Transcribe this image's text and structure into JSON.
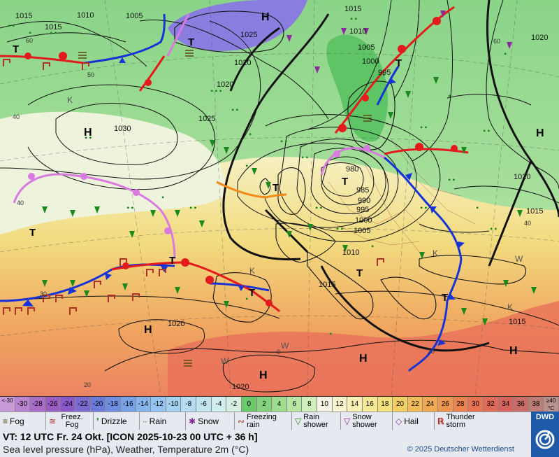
{
  "map": {
    "pressure_labels": [
      {
        "text": "1015"
      },
      {
        "text": "1010"
      },
      {
        "text": "1005"
      },
      {
        "text": "1015"
      },
      {
        "text": "1025"
      },
      {
        "text": "1020"
      },
      {
        "text": "1020"
      },
      {
        "text": "1030"
      },
      {
        "text": "1025"
      },
      {
        "text": "1010"
      },
      {
        "text": "1005"
      },
      {
        "text": "1000"
      },
      {
        "text": "995"
      },
      {
        "text": "1015"
      },
      {
        "text": "1020"
      },
      {
        "text": "1020"
      },
      {
        "text": "1015"
      },
      {
        "text": "980"
      },
      {
        "text": "985"
      },
      {
        "text": "990"
      },
      {
        "text": "995"
      },
      {
        "text": "1000"
      },
      {
        "text": "1005"
      },
      {
        "text": "1010"
      },
      {
        "text": "1015"
      },
      {
        "text": "1020"
      },
      {
        "text": "1015"
      },
      {
        "text": "1020"
      }
    ],
    "highs": [
      "H",
      "H",
      "H",
      "H",
      "H",
      "H",
      "H"
    ],
    "lows": [
      "T",
      "T",
      "T",
      "T",
      "T",
      "T",
      "T",
      "T",
      "T",
      "T"
    ],
    "k_labels": [
      "K",
      "K",
      "K",
      "K"
    ],
    "w_labels": [
      "W",
      "W",
      "W"
    ],
    "temp_labels": [
      "60",
      "50",
      "40",
      "40",
      "30",
      "20",
      "0",
      "20",
      "40",
      "60"
    ]
  },
  "scale": {
    "cells": [
      {
        "label": "<-30",
        "color": "#c89ad8"
      },
      {
        "label": "-30",
        "color": "#b985d0"
      },
      {
        "label": "-28",
        "color": "#a96fc8"
      },
      {
        "label": "-26",
        "color": "#9a5cc0"
      },
      {
        "label": "-24",
        "color": "#8a58c8"
      },
      {
        "label": "-22",
        "color": "#7a6ad0"
      },
      {
        "label": "-20",
        "color": "#6a7ad8"
      },
      {
        "label": "-18",
        "color": "#6f8ee0"
      },
      {
        "label": "-16",
        "color": "#78a2e6"
      },
      {
        "label": "-14",
        "color": "#86b4ec"
      },
      {
        "label": "-12",
        "color": "#96c4f0"
      },
      {
        "label": "-10",
        "color": "#a6d2f2"
      },
      {
        "label": "-8",
        "color": "#b4dcf2"
      },
      {
        "label": "-6",
        "color": "#c2e6f0"
      },
      {
        "label": "-4",
        "color": "#cfeeec"
      },
      {
        "label": "-2",
        "color": "#d7f0e4"
      },
      {
        "label": "0",
        "color": "#6cc86c"
      },
      {
        "label": "2",
        "color": "#84d27e"
      },
      {
        "label": "4",
        "color": "#9edc90"
      },
      {
        "label": "6",
        "color": "#b8e6a4"
      },
      {
        "label": "8",
        "color": "#d0efbc"
      },
      {
        "label": "10",
        "color": "#f6f6e6"
      },
      {
        "label": "12",
        "color": "#f8f4d0"
      },
      {
        "label": "14",
        "color": "#f8f0b4"
      },
      {
        "label": "16",
        "color": "#f6ea96"
      },
      {
        "label": "18",
        "color": "#f4e07c"
      },
      {
        "label": "20",
        "color": "#f2d066"
      },
      {
        "label": "22",
        "color": "#f2bc5a"
      },
      {
        "label": "24",
        "color": "#f0a852"
      },
      {
        "label": "26",
        "color": "#ee9650"
      },
      {
        "label": "28",
        "color": "#ec8450"
      },
      {
        "label": "30",
        "color": "#e87452"
      },
      {
        "label": "32",
        "color": "#e06a58"
      },
      {
        "label": "34",
        "color": "#d4645c"
      },
      {
        "label": "36",
        "color": "#c86c68"
      },
      {
        "label": "38",
        "color": "#bc7c78"
      },
      {
        "label": "≥40 °C",
        "color": "#b8908c"
      }
    ]
  },
  "legend": {
    "fog": "Fog",
    "freezing_fog": "Freez. Fog",
    "drizzle": "Drizzle",
    "rain": "Rain",
    "snow": "Snow",
    "freezing_rain": "Freezing rain",
    "rain_shower": "Rain shower",
    "snow_shower": "Snow shower",
    "hail": "Hail",
    "thunderstorm": "Thunder storm"
  },
  "footer": {
    "valid_time": "VT: 12 UTC Fr.  24 Okt. [ICON 2025-10-23  00 UTC + 36 h]",
    "parameters": "Sea level pressure (hPa), Weather, Temperature 2m (°C)",
    "copyright": "© 2025 Deutscher Wetterdienst",
    "logo_text": "DWD"
  },
  "colors": {
    "warm_front": "#e41a1c",
    "cold_front": "#1533d6",
    "occlusion": "#d97ae0",
    "trough": "#f08a1a",
    "isobar": "#111111"
  }
}
